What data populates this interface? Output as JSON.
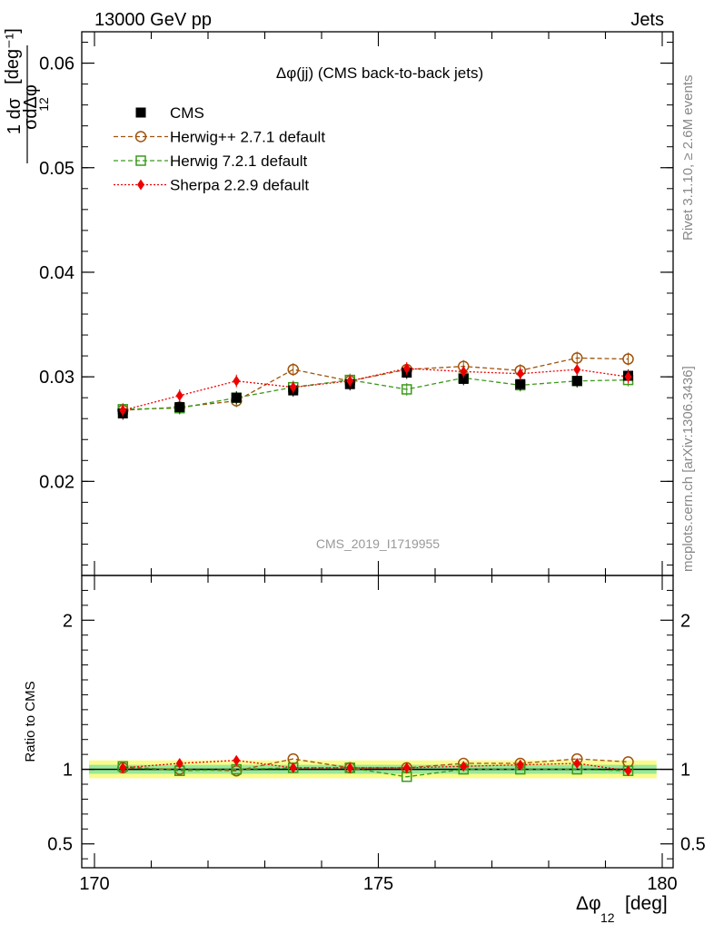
{
  "header": {
    "left": "13000 GeV pp",
    "right": "Jets"
  },
  "side_labels": {
    "rivet": "Rivet 3.1.10, ≥ 2.6M events",
    "mcplots": "mcplots.cern.ch [arXiv:1306.3436]"
  },
  "chart_data": {
    "type": "line",
    "title": "Δφ(jj) (CMS back-to-back jets)",
    "analysis_id": "CMS_2019_I1719955",
    "ylabel": "1/σ dσ/dΔφ_12 [deg⁻¹]",
    "ratio_ylabel": "Ratio to CMS",
    "xlabel": "Δφ_12 [deg]",
    "xlim": [
      170,
      180
    ],
    "ylim": [
      0.011,
      0.063
    ],
    "ratio_ylim": [
      0.34,
      2.3
    ],
    "x_ticks": [
      "170",
      "175",
      "180"
    ],
    "y_ticks": [
      "0.02",
      "0.03",
      "0.04",
      "0.05",
      "0.06"
    ],
    "ratio_ticks": [
      "0.5",
      "1",
      "2"
    ],
    "x": [
      170.5,
      171.5,
      172.5,
      173.5,
      174.5,
      175.5,
      176.5,
      177.5,
      178.5,
      179.4
    ],
    "series": [
      {
        "name": "CMS",
        "marker": "square-filled",
        "color": "#000000",
        "line": "none",
        "values": [
          0.0265,
          0.0271,
          0.028,
          0.0287,
          0.0293,
          0.0304,
          0.0298,
          0.0293,
          0.0296,
          0.0301
        ]
      },
      {
        "name": "Herwig++ 2.7.1 default",
        "marker": "circle-open",
        "color": "#a0520a",
        "line": "dashed",
        "values": [
          0.0268,
          0.0271,
          0.0277,
          0.0307,
          0.0296,
          0.0307,
          0.031,
          0.0306,
          0.0318,
          0.0317
        ]
      },
      {
        "name": "Herwig 7.2.1 default",
        "marker": "square-open",
        "color": "#3a9a1a",
        "line": "dashed",
        "values": [
          0.0269,
          0.027,
          0.028,
          0.029,
          0.0297,
          0.0288,
          0.0299,
          0.0292,
          0.0296,
          0.0297
        ]
      },
      {
        "name": "Sherpa 2.2.9 default",
        "marker": "diamond-filled",
        "color": "#ee0000",
        "line": "dotted",
        "values": [
          0.0268,
          0.0282,
          0.0296,
          0.029,
          0.0296,
          0.0308,
          0.0305,
          0.0303,
          0.0307,
          0.03
        ]
      }
    ],
    "ratio_series": [
      {
        "name": "Herwig++ 2.7.1 default",
        "values": [
          1.01,
          1.0,
          0.99,
          1.07,
          1.01,
          1.01,
          1.04,
          1.04,
          1.07,
          1.05
        ]
      },
      {
        "name": "Herwig 7.2.1 default",
        "values": [
          1.02,
          0.99,
          1.0,
          1.01,
          1.01,
          0.95,
          1.0,
          1.0,
          1.0,
          0.99
        ]
      },
      {
        "name": "Sherpa 2.2.9 default",
        "values": [
          1.01,
          1.04,
          1.06,
          1.01,
          1.01,
          1.01,
          1.02,
          1.03,
          1.04,
          0.99
        ]
      }
    ],
    "ratio_band": {
      "green_half_width": 0.03,
      "yellow_half_width": 0.06
    },
    "legend_position": "top-left"
  }
}
